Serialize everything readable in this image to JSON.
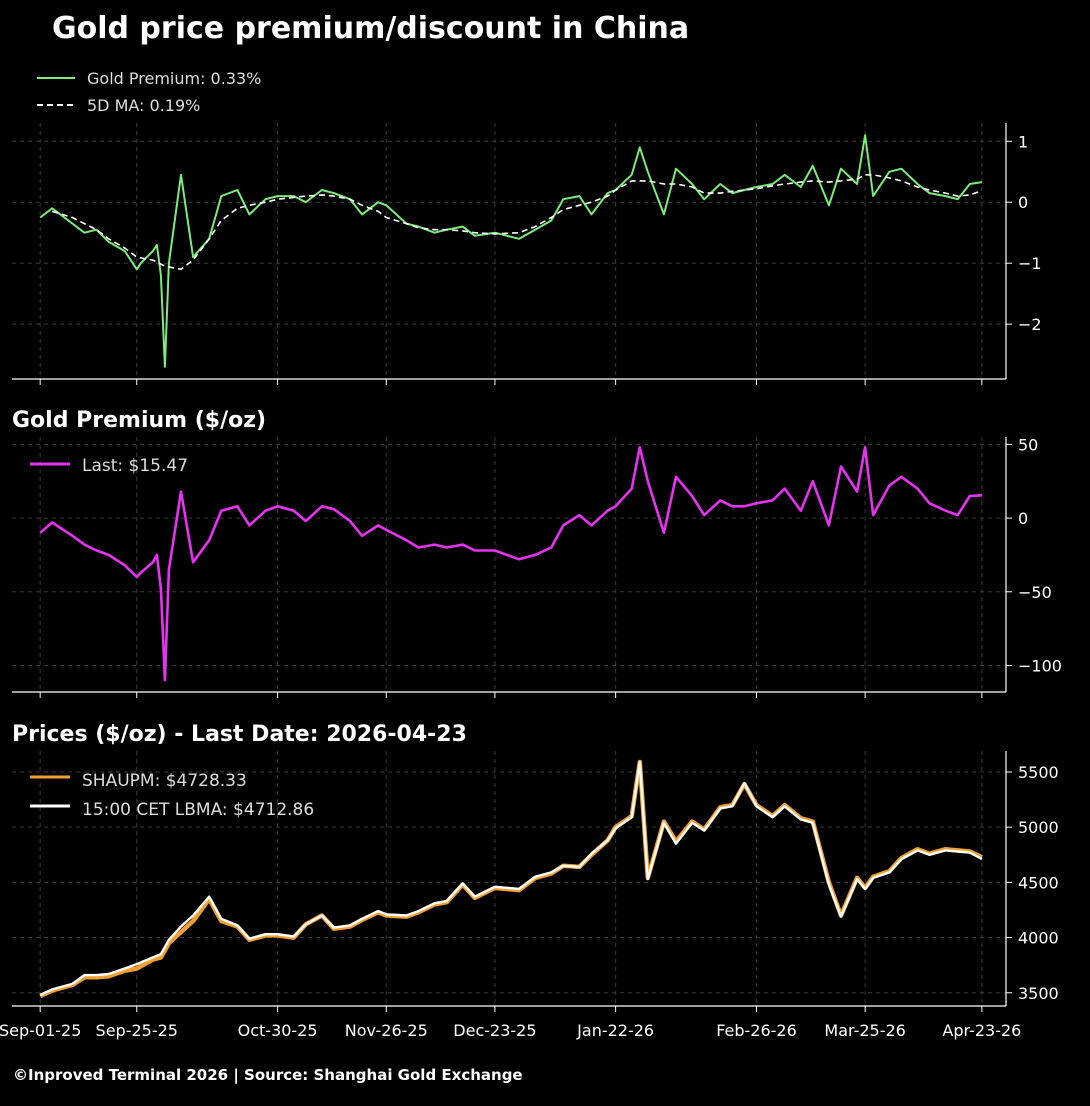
{
  "header": {
    "title": "Gold price premium/discount in China",
    "footer": "©Inproved Terminal 2026 | Source: Shanghai Gold Exchange"
  },
  "x_axis": {
    "tick_labels": [
      "Sep-01-25",
      "Sep-25-25",
      "Oct-30-25",
      "Nov-26-25",
      "Dec-23-25",
      "Jan-22-26",
      "Feb-26-26",
      "Mar-25-26",
      "Apr-23-26"
    ],
    "tick_dates": [
      "2025-09-01",
      "2025-09-25",
      "2025-10-30",
      "2025-11-26",
      "2025-12-23",
      "2026-01-22",
      "2026-02-26",
      "2026-03-25",
      "2026-04-23"
    ],
    "range": [
      "2025-08-25",
      "2026-04-29"
    ]
  },
  "colors": {
    "premium_pct": "#7CEB7C",
    "ma": "#FFFFFF",
    "premium_usd": "#E633F0",
    "shaupm": "#F0A030",
    "lbma": "#FFFFFF",
    "grid": "#3a3a3a",
    "axis": "#FFFFFF"
  },
  "chart_data": [
    {
      "type": "line",
      "title": "",
      "ylabel": "",
      "ylim": [
        -2.9,
        1.3
      ],
      "yticks": [
        1,
        0,
        -1,
        -2
      ],
      "ytick_labels": [
        "1",
        "0",
        "−1",
        "−2"
      ],
      "grid": true,
      "legend": "top-left",
      "legend_labels": [
        "Gold Premium: 0.33%",
        "5D MA: 0.19%"
      ],
      "series": [
        {
          "name": "Gold Premium",
          "style": "solid",
          "x": [
            "2025-09-01",
            "2025-09-04",
            "2025-09-09",
            "2025-09-12",
            "2025-09-15",
            "2025-09-18",
            "2025-09-22",
            "2025-09-25",
            "2025-09-26",
            "2025-09-29",
            "2025-09-30",
            "2025-10-01",
            "2025-10-02",
            "2025-10-03",
            "2025-10-06",
            "2025-10-09",
            "2025-10-13",
            "2025-10-16",
            "2025-10-20",
            "2025-10-23",
            "2025-10-27",
            "2025-10-30",
            "2025-11-03",
            "2025-11-06",
            "2025-11-10",
            "2025-11-13",
            "2025-11-17",
            "2025-11-20",
            "2025-11-24",
            "2025-11-26",
            "2025-12-01",
            "2025-12-04",
            "2025-12-08",
            "2025-12-11",
            "2025-12-15",
            "2025-12-18",
            "2025-12-23",
            "2025-12-29",
            "2026-01-02",
            "2026-01-06",
            "2026-01-09",
            "2026-01-13",
            "2026-01-16",
            "2026-01-20",
            "2026-01-22",
            "2026-01-26",
            "2026-01-28",
            "2026-01-30",
            "2026-02-03",
            "2026-02-06",
            "2026-02-10",
            "2026-02-13",
            "2026-02-17",
            "2026-02-20",
            "2026-02-23",
            "2026-02-26",
            "2026-03-02",
            "2026-03-05",
            "2026-03-09",
            "2026-03-12",
            "2026-03-16",
            "2026-03-19",
            "2026-03-23",
            "2026-03-25",
            "2026-03-27",
            "2026-03-31",
            "2026-04-03",
            "2026-04-07",
            "2026-04-10",
            "2026-04-14",
            "2026-04-17",
            "2026-04-20",
            "2026-04-23"
          ],
          "y": [
            -0.25,
            -0.1,
            -0.35,
            -0.5,
            -0.45,
            -0.65,
            -0.8,
            -1.1,
            -1.0,
            -0.8,
            -0.7,
            -1.2,
            -2.7,
            -1.0,
            0.45,
            -0.9,
            -0.6,
            0.1,
            0.2,
            -0.2,
            0.05,
            0.1,
            0.1,
            0.0,
            0.2,
            0.15,
            0.05,
            -0.2,
            0.0,
            -0.05,
            -0.35,
            -0.4,
            -0.5,
            -0.45,
            -0.4,
            -0.55,
            -0.5,
            -0.6,
            -0.45,
            -0.3,
            0.05,
            0.1,
            -0.2,
            0.15,
            0.2,
            0.45,
            0.9,
            0.5,
            -0.2,
            0.55,
            0.3,
            0.05,
            0.3,
            0.15,
            0.2,
            0.25,
            0.3,
            0.45,
            0.25,
            0.6,
            -0.05,
            0.55,
            0.3,
            1.1,
            0.1,
            0.5,
            0.55,
            0.3,
            0.15,
            0.1,
            0.05,
            0.3,
            0.33
          ]
        },
        {
          "name": "5D MA",
          "style": "dashed",
          "x": [
            "2025-09-04",
            "2025-09-09",
            "2025-09-12",
            "2025-09-15",
            "2025-09-18",
            "2025-09-22",
            "2025-09-25",
            "2025-09-29",
            "2025-10-02",
            "2025-10-06",
            "2025-10-09",
            "2025-10-13",
            "2025-10-16",
            "2025-10-20",
            "2025-10-23",
            "2025-10-27",
            "2025-10-30",
            "2025-11-03",
            "2025-11-06",
            "2025-11-10",
            "2025-11-13",
            "2025-11-17",
            "2025-11-20",
            "2025-11-24",
            "2025-11-26",
            "2025-12-01",
            "2025-12-04",
            "2025-12-08",
            "2025-12-11",
            "2025-12-15",
            "2025-12-18",
            "2025-12-23",
            "2025-12-29",
            "2026-01-02",
            "2026-01-06",
            "2026-01-09",
            "2026-01-13",
            "2026-01-16",
            "2026-01-20",
            "2026-01-22",
            "2026-01-26",
            "2026-01-30",
            "2026-02-03",
            "2026-02-06",
            "2026-02-10",
            "2026-02-13",
            "2026-02-17",
            "2026-02-20",
            "2026-02-23",
            "2026-02-26",
            "2026-03-02",
            "2026-03-05",
            "2026-03-09",
            "2026-03-12",
            "2026-03-16",
            "2026-03-19",
            "2026-03-23",
            "2026-03-25",
            "2026-03-27",
            "2026-03-31",
            "2026-04-03",
            "2026-04-07",
            "2026-04-10",
            "2026-04-14",
            "2026-04-17",
            "2026-04-20",
            "2026-04-23"
          ],
          "y": [
            -0.15,
            -0.25,
            -0.35,
            -0.45,
            -0.6,
            -0.75,
            -0.9,
            -0.95,
            -1.05,
            -1.1,
            -0.95,
            -0.6,
            -0.3,
            -0.1,
            -0.05,
            0.0,
            0.05,
            0.08,
            0.1,
            0.12,
            0.1,
            0.05,
            -0.05,
            -0.15,
            -0.25,
            -0.35,
            -0.42,
            -0.45,
            -0.45,
            -0.47,
            -0.5,
            -0.52,
            -0.5,
            -0.4,
            -0.25,
            -0.12,
            -0.05,
            0.0,
            0.1,
            0.2,
            0.35,
            0.35,
            0.3,
            0.3,
            0.25,
            0.15,
            0.15,
            0.18,
            0.2,
            0.22,
            0.27,
            0.3,
            0.33,
            0.35,
            0.33,
            0.35,
            0.38,
            0.45,
            0.45,
            0.4,
            0.35,
            0.25,
            0.2,
            0.15,
            0.1,
            0.12,
            0.19
          ]
        }
      ]
    },
    {
      "type": "line",
      "title": "Gold Premium ($/oz)",
      "ylabel": "",
      "ylim": [
        -118,
        55
      ],
      "yticks": [
        50,
        0,
        -50,
        -100
      ],
      "ytick_labels": [
        "50",
        "0",
        "−50",
        "−100"
      ],
      "grid": true,
      "legend": "top-left",
      "legend_labels": [
        "Last: $15.47"
      ],
      "series": [
        {
          "name": "Last",
          "style": "solid",
          "x": [
            "2025-09-01",
            "2025-09-04",
            "2025-09-09",
            "2025-09-12",
            "2025-09-15",
            "2025-09-18",
            "2025-09-22",
            "2025-09-25",
            "2025-09-26",
            "2025-09-29",
            "2025-09-30",
            "2025-10-01",
            "2025-10-02",
            "2025-10-03",
            "2025-10-06",
            "2025-10-09",
            "2025-10-13",
            "2025-10-16",
            "2025-10-20",
            "2025-10-23",
            "2025-10-27",
            "2025-10-30",
            "2025-11-03",
            "2025-11-06",
            "2025-11-10",
            "2025-11-13",
            "2025-11-17",
            "2025-11-20",
            "2025-11-24",
            "2025-11-26",
            "2025-12-01",
            "2025-12-04",
            "2025-12-08",
            "2025-12-11",
            "2025-12-15",
            "2025-12-18",
            "2025-12-23",
            "2025-12-29",
            "2026-01-02",
            "2026-01-06",
            "2026-01-09",
            "2026-01-13",
            "2026-01-16",
            "2026-01-20",
            "2026-01-22",
            "2026-01-26",
            "2026-01-28",
            "2026-01-30",
            "2026-02-03",
            "2026-02-06",
            "2026-02-10",
            "2026-02-13",
            "2026-02-17",
            "2026-02-20",
            "2026-02-23",
            "2026-02-26",
            "2026-03-02",
            "2026-03-05",
            "2026-03-09",
            "2026-03-12",
            "2026-03-16",
            "2026-03-19",
            "2026-03-23",
            "2026-03-25",
            "2026-03-27",
            "2026-03-31",
            "2026-04-03",
            "2026-04-07",
            "2026-04-10",
            "2026-04-14",
            "2026-04-17",
            "2026-04-20",
            "2026-04-23"
          ],
          "y": [
            -10,
            -3,
            -12,
            -18,
            -22,
            -25,
            -32,
            -40,
            -37,
            -30,
            -25,
            -48,
            -110,
            -35,
            18,
            -30,
            -15,
            5,
            8,
            -5,
            5,
            8,
            5,
            -2,
            8,
            6,
            -2,
            -12,
            -5,
            -8,
            -15,
            -20,
            -18,
            -20,
            -18,
            -22,
            -22,
            -28,
            -25,
            -20,
            -5,
            2,
            -5,
            5,
            8,
            20,
            48,
            25,
            -10,
            28,
            15,
            2,
            12,
            8,
            8,
            10,
            12,
            20,
            5,
            25,
            -5,
            35,
            18,
            48,
            2,
            22,
            28,
            20,
            10,
            5,
            2,
            15,
            15.47
          ]
        }
      ]
    },
    {
      "type": "line",
      "title": "Prices ($/oz) - Last Date: 2026-04-23",
      "ylabel": "",
      "ylim": [
        3380,
        5690
      ],
      "yticks": [
        5500,
        5000,
        4500,
        4000,
        3500
      ],
      "ytick_labels": [
        "5500",
        "5000",
        "4500",
        "4000",
        "3500"
      ],
      "grid": true,
      "legend": "top-left",
      "legend_labels": [
        "SHAUPM: $4728.33",
        "15:00 CET LBMA: $4712.86"
      ],
      "series": [
        {
          "name": "SHAUPM",
          "style": "solid",
          "x": [
            "2025-09-01",
            "2025-09-04",
            "2025-09-09",
            "2025-09-12",
            "2025-09-15",
            "2025-09-18",
            "2025-09-22",
            "2025-09-25",
            "2025-09-29",
            "2025-10-01",
            "2025-10-03",
            "2025-10-06",
            "2025-10-09",
            "2025-10-13",
            "2025-10-16",
            "2025-10-20",
            "2025-10-23",
            "2025-10-27",
            "2025-10-30",
            "2025-11-03",
            "2025-11-06",
            "2025-11-10",
            "2025-11-13",
            "2025-11-17",
            "2025-11-20",
            "2025-11-24",
            "2025-11-26",
            "2025-12-01",
            "2025-12-04",
            "2025-12-08",
            "2025-12-11",
            "2025-12-15",
            "2025-12-18",
            "2025-12-23",
            "2025-12-29",
            "2026-01-02",
            "2026-01-06",
            "2026-01-09",
            "2026-01-13",
            "2026-01-16",
            "2026-01-20",
            "2026-01-22",
            "2026-01-26",
            "2026-01-28",
            "2026-01-30",
            "2026-02-03",
            "2026-02-06",
            "2026-02-10",
            "2026-02-13",
            "2026-02-17",
            "2026-02-20",
            "2026-02-23",
            "2026-02-26",
            "2026-03-02",
            "2026-03-05",
            "2026-03-09",
            "2026-03-12",
            "2026-03-16",
            "2026-03-19",
            "2026-03-23",
            "2026-03-25",
            "2026-03-27",
            "2026-03-31",
            "2026-04-03",
            "2026-04-07",
            "2026-04-10",
            "2026-04-14",
            "2026-04-17",
            "2026-04-20",
            "2026-04-23"
          ],
          "y": [
            3470,
            3520,
            3570,
            3640,
            3640,
            3650,
            3700,
            3720,
            3800,
            3820,
            3950,
            4050,
            4150,
            4350,
            4150,
            4100,
            3980,
            4020,
            4020,
            4000,
            4120,
            4200,
            4080,
            4100,
            4160,
            4230,
            4200,
            4190,
            4230,
            4300,
            4320,
            4480,
            4360,
            4450,
            4430,
            4540,
            4580,
            4650,
            4640,
            4750,
            4880,
            5000,
            5100,
            5590,
            4540,
            5050,
            4870,
            5050,
            4980,
            5180,
            5200,
            5390,
            5200,
            5100,
            5200,
            5080,
            5050,
            4500,
            4200,
            4540,
            4450,
            4550,
            4600,
            4720,
            4800,
            4760,
            4800,
            4790,
            4780,
            4728.33
          ]
        },
        {
          "name": "15:00 CET LBMA",
          "style": "solid",
          "x": [
            "2025-09-01",
            "2025-09-04",
            "2025-09-09",
            "2025-09-12",
            "2025-09-15",
            "2025-09-18",
            "2025-09-22",
            "2025-09-25",
            "2025-09-29",
            "2025-10-01",
            "2025-10-03",
            "2025-10-06",
            "2025-10-09",
            "2025-10-13",
            "2025-10-16",
            "2025-10-20",
            "2025-10-23",
            "2025-10-27",
            "2025-10-30",
            "2025-11-03",
            "2025-11-06",
            "2025-11-10",
            "2025-11-13",
            "2025-11-17",
            "2025-11-20",
            "2025-11-24",
            "2025-11-26",
            "2025-12-01",
            "2025-12-04",
            "2025-12-08",
            "2025-12-11",
            "2025-12-15",
            "2025-12-18",
            "2025-12-23",
            "2025-12-29",
            "2026-01-02",
            "2026-01-06",
            "2026-01-09",
            "2026-01-13",
            "2026-01-16",
            "2026-01-20",
            "2026-01-22",
            "2026-01-26",
            "2026-01-28",
            "2026-01-30",
            "2026-02-03",
            "2026-02-06",
            "2026-02-10",
            "2026-02-13",
            "2026-02-17",
            "2026-02-20",
            "2026-02-23",
            "2026-02-26",
            "2026-03-02",
            "2026-03-05",
            "2026-03-09",
            "2026-03-12",
            "2026-03-16",
            "2026-03-19",
            "2026-03-23",
            "2026-03-25",
            "2026-03-27",
            "2026-03-31",
            "2026-04-03",
            "2026-04-07",
            "2026-04-10",
            "2026-04-14",
            "2026-04-17",
            "2026-04-20",
            "2026-04-23"
          ],
          "y": [
            3480,
            3530,
            3580,
            3660,
            3660,
            3670,
            3720,
            3760,
            3820,
            3850,
            3980,
            4100,
            4200,
            4370,
            4170,
            4110,
            3990,
            4030,
            4030,
            4010,
            4120,
            4200,
            4090,
            4110,
            4170,
            4240,
            4210,
            4200,
            4240,
            4310,
            4330,
            4490,
            4370,
            4460,
            4440,
            4550,
            4590,
            4650,
            4640,
            4760,
            4880,
            4990,
            5090,
            5590,
            4530,
            5040,
            4850,
            5040,
            4970,
            5170,
            5190,
            5400,
            5190,
            5090,
            5190,
            5070,
            5040,
            4480,
            4190,
            4530,
            4440,
            4540,
            4590,
            4710,
            4790,
            4750,
            4790,
            4780,
            4770,
            4712.86
          ]
        }
      ]
    }
  ]
}
